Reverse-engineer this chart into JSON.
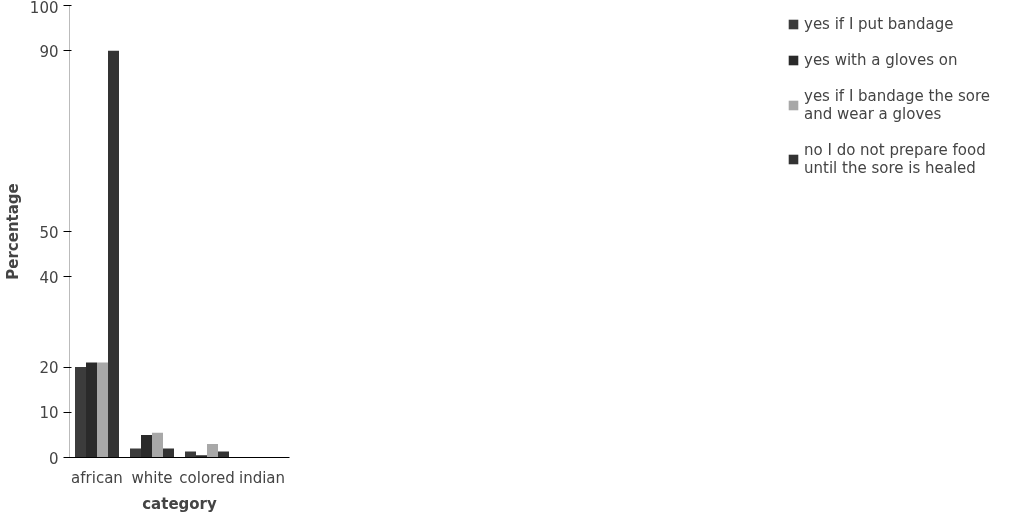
{
  "chart_data": {
    "type": "bar",
    "xlabel": "category",
    "ylabel": "Percentage",
    "categories": [
      "african",
      "white",
      "colored",
      "indian"
    ],
    "series": [
      {
        "name": "yes if I put bandage",
        "color": "#3c3c3c",
        "values": [
          20,
          2,
          1.3,
          0
        ]
      },
      {
        "name": "yes with a gloves on",
        "color": "#2a2a2a",
        "values": [
          21,
          5,
          0.5,
          0
        ]
      },
      {
        "name": "yes if I bandage the sore and wear a gloves",
        "color": "#a8a8a8",
        "values": [
          21,
          5.5,
          3,
          0
        ]
      },
      {
        "name": "no I do not prepare food until the sore is healed",
        "color": "#333333",
        "values": [
          90,
          2,
          1.3,
          0
        ]
      }
    ],
    "ylim": [
      0,
      100
    ],
    "yticks": [
      0,
      10,
      20,
      40,
      50,
      90,
      100
    ],
    "grid": false,
    "legend": "right"
  }
}
